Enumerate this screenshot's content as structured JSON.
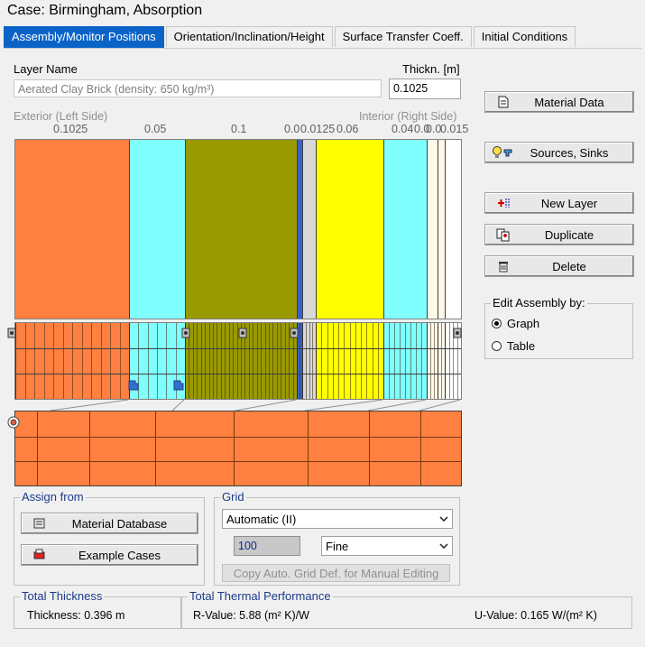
{
  "window": {
    "title": "Case:  Birmingham, Absorption"
  },
  "tabs": [
    {
      "label": "Assembly/Monitor Positions"
    },
    {
      "label": "Orientation/Inclination/Height"
    },
    {
      "label": "Surface Transfer Coeff."
    },
    {
      "label": "Initial Conditions"
    }
  ],
  "layer": {
    "name_label": "Layer Name",
    "name_value": "Aerated Clay Brick (density: 650 kg/m³)",
    "thickness_label": "Thickn. [m]",
    "thickness_value": "0.1025"
  },
  "assembly": {
    "exterior_label": "Exterior (Left Side)",
    "interior_label": "Interior (Right Side)",
    "layers": [
      {
        "thickness": "0.1025",
        "color": "#ff8040"
      },
      {
        "thickness": "0.05",
        "color": "#80ffff"
      },
      {
        "thickness": "0.1",
        "color": "#999900"
      },
      {
        "thickness": "0.0",
        "color": "#3a5fcd"
      },
      {
        "thickness": "0.0125",
        "color": "#d8d8d8"
      },
      {
        "thickness": "0.06",
        "color": "#ffff00"
      },
      {
        "thickness": "0.04",
        "color": "#80ffff"
      },
      {
        "thickness": "0.0",
        "color": "#fff8e8"
      },
      {
        "thickness": "0.0",
        "color": "#fff8e8"
      },
      {
        "thickness": "0.015",
        "color": "#ffffff"
      }
    ]
  },
  "buttons": {
    "material_data": "Material Data",
    "sources_sinks": "Sources, Sinks",
    "new_layer": "New Layer",
    "duplicate": "Duplicate",
    "delete": "Delete"
  },
  "edit_by": {
    "title": "Edit Assembly by:",
    "options": [
      {
        "label": "Graph",
        "selected": true
      },
      {
        "label": "Table",
        "selected": false
      }
    ]
  },
  "assign_from": {
    "title": "Assign from",
    "material_database": "Material Database",
    "example_cases": "Example Cases"
  },
  "grid": {
    "title": "Grid",
    "mode": "Automatic (II)",
    "count": "100",
    "resolution": "Fine",
    "copy_button": "Copy Auto. Grid Def. for Manual Editing"
  },
  "totals": {
    "thickness_title": "Total Thickness",
    "thickness_value": "Thickness: 0.396 m",
    "performance_title": "Total Thermal Performance",
    "r_value": "R-Value: 5.88 (m² K)/W",
    "u_value": "U-Value: 0.165 W/(m² K)"
  }
}
